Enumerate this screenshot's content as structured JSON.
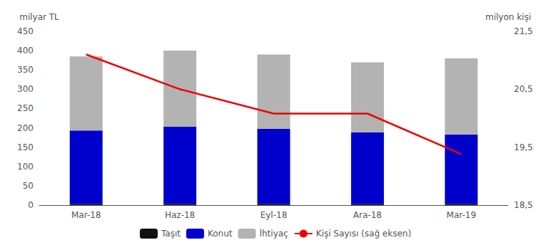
{
  "chart_data": {
    "type": "bar",
    "stacked": true,
    "categories": [
      "Mar-18",
      "Haz-18",
      "Eyl-18",
      "Ara-18",
      "Mar-19"
    ],
    "series": [
      {
        "name": "Taşıt",
        "color": "#111111",
        "values": [
          3,
          3,
          3,
          3,
          3
        ]
      },
      {
        "name": "Konut",
        "color": "#0000cc",
        "values": [
          190,
          200,
          195,
          185,
          180
        ]
      },
      {
        "name": "İhtiyaç",
        "color": "#b3b3b3",
        "values": [
          192,
          197,
          192,
          182,
          197
        ]
      },
      {
        "name": "Kişi Sayısı (sağ eksen)",
        "type": "line",
        "axis": "y2",
        "color": "#ee0000",
        "values": [
          21.1,
          20.5,
          20.08,
          20.08,
          19.38
        ]
      }
    ],
    "ylabel": "milyar TL",
    "y2label": "milyon kişi",
    "ylim": [
      0,
      450
    ],
    "yticks": [
      0,
      50,
      100,
      150,
      200,
      250,
      300,
      350,
      400,
      450
    ],
    "y2lim": [
      18.5,
      21.5
    ],
    "y2ticks": [
      {
        "value": 18.5,
        "label": "18,5"
      },
      {
        "value": 19.5,
        "label": "19,5"
      },
      {
        "value": 20.5,
        "label": "20,5"
      },
      {
        "value": 21.5,
        "label": "21,5"
      }
    ],
    "grid": false,
    "legend": "bottom"
  }
}
